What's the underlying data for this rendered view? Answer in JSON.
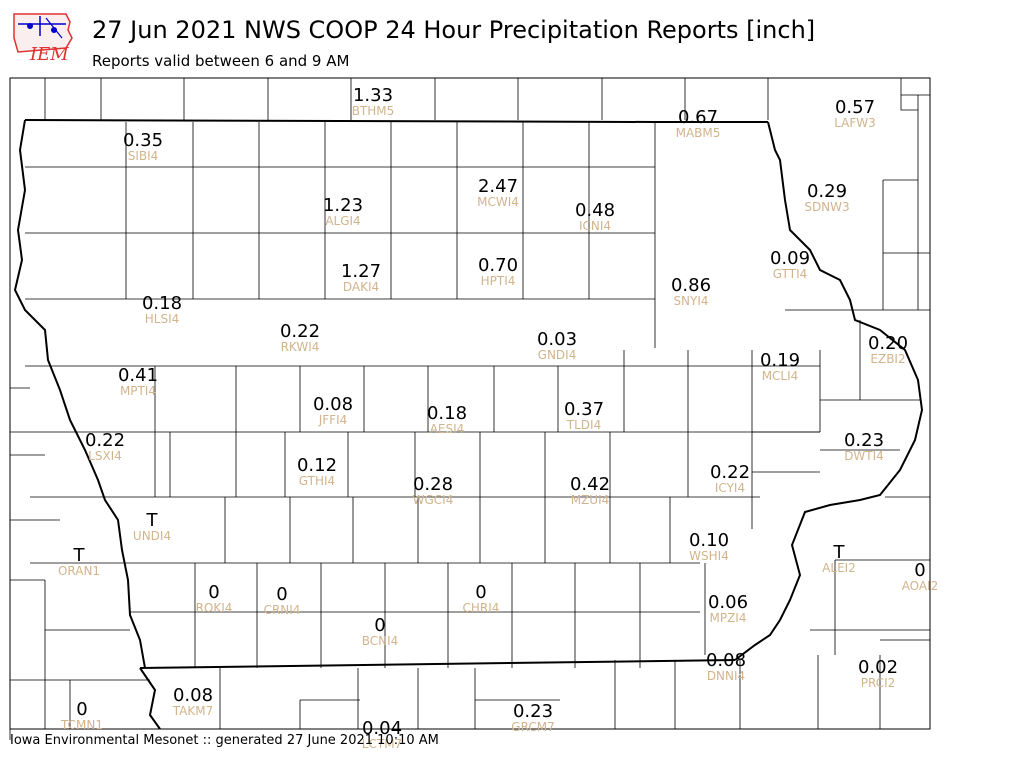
{
  "title": "27 Jun 2021 NWS COOP 24 Hour Precipitation Reports [inch]",
  "subtitle": "Reports valid between 6 and 9 AM",
  "footer": "Iowa Environmental Mesonet :: generated 27 June 2021 10:10 AM",
  "logo_text": "IEM",
  "colors": {
    "value": "#000000",
    "station": "#d2b48c",
    "border": "#000000"
  },
  "stations": [
    {
      "id": "BTHM5",
      "value": "1.33"
    },
    {
      "id": "MABM5",
      "value": "0.67"
    },
    {
      "id": "LAFW3",
      "value": "0.57"
    },
    {
      "id": "SIBI4",
      "value": "0.35"
    },
    {
      "id": "ALGI4",
      "value": "1.23"
    },
    {
      "id": "MCWI4",
      "value": "2.47"
    },
    {
      "id": "ICNI4",
      "value": "0.48"
    },
    {
      "id": "SDNW3",
      "value": "0.29"
    },
    {
      "id": "DAKI4",
      "value": "1.27"
    },
    {
      "id": "HPTI4",
      "value": "0.70"
    },
    {
      "id": "GTTI4",
      "value": "0.09"
    },
    {
      "id": "SNYI4",
      "value": "0.86"
    },
    {
      "id": "HLSI4",
      "value": "0.18"
    },
    {
      "id": "RKWI4",
      "value": "0.22"
    },
    {
      "id": "GNDI4",
      "value": "0.03"
    },
    {
      "id": "MCLI4",
      "value": "0.19"
    },
    {
      "id": "EZBI2",
      "value": "0.20"
    },
    {
      "id": "MPTI4",
      "value": "0.41"
    },
    {
      "id": "JFFI4",
      "value": "0.08"
    },
    {
      "id": "AESI4",
      "value": "0.18"
    },
    {
      "id": "TLDI4",
      "value": "0.37"
    },
    {
      "id": "DWTI4",
      "value": "0.23"
    },
    {
      "id": "LSXI4",
      "value": "0.22"
    },
    {
      "id": "GTHI4",
      "value": "0.12"
    },
    {
      "id": "WGCI4",
      "value": "0.28"
    },
    {
      "id": "MZUI4",
      "value": "0.42"
    },
    {
      "id": "ICYI4",
      "value": "0.22"
    },
    {
      "id": "UNDI4",
      "value": "T"
    },
    {
      "id": "WSHI4",
      "value": "0.10"
    },
    {
      "id": "ORAN1",
      "value": "T"
    },
    {
      "id": "ALEI2",
      "value": "T"
    },
    {
      "id": "AOAI2",
      "value": "0"
    },
    {
      "id": "ROKI4",
      "value": "0"
    },
    {
      "id": "CRNI4",
      "value": "0"
    },
    {
      "id": "CHRI4",
      "value": "0"
    },
    {
      "id": "MPZI4",
      "value": "0.06"
    },
    {
      "id": "BCNI4",
      "value": "0"
    },
    {
      "id": "DNNI4",
      "value": "0.08"
    },
    {
      "id": "PRCI2",
      "value": "0.02"
    },
    {
      "id": "TCMN1",
      "value": "0"
    },
    {
      "id": "TAKM7",
      "value": "0.08"
    },
    {
      "id": "GRCM7",
      "value": "0.23"
    },
    {
      "id": "LCTM7",
      "value": "0.04"
    }
  ]
}
